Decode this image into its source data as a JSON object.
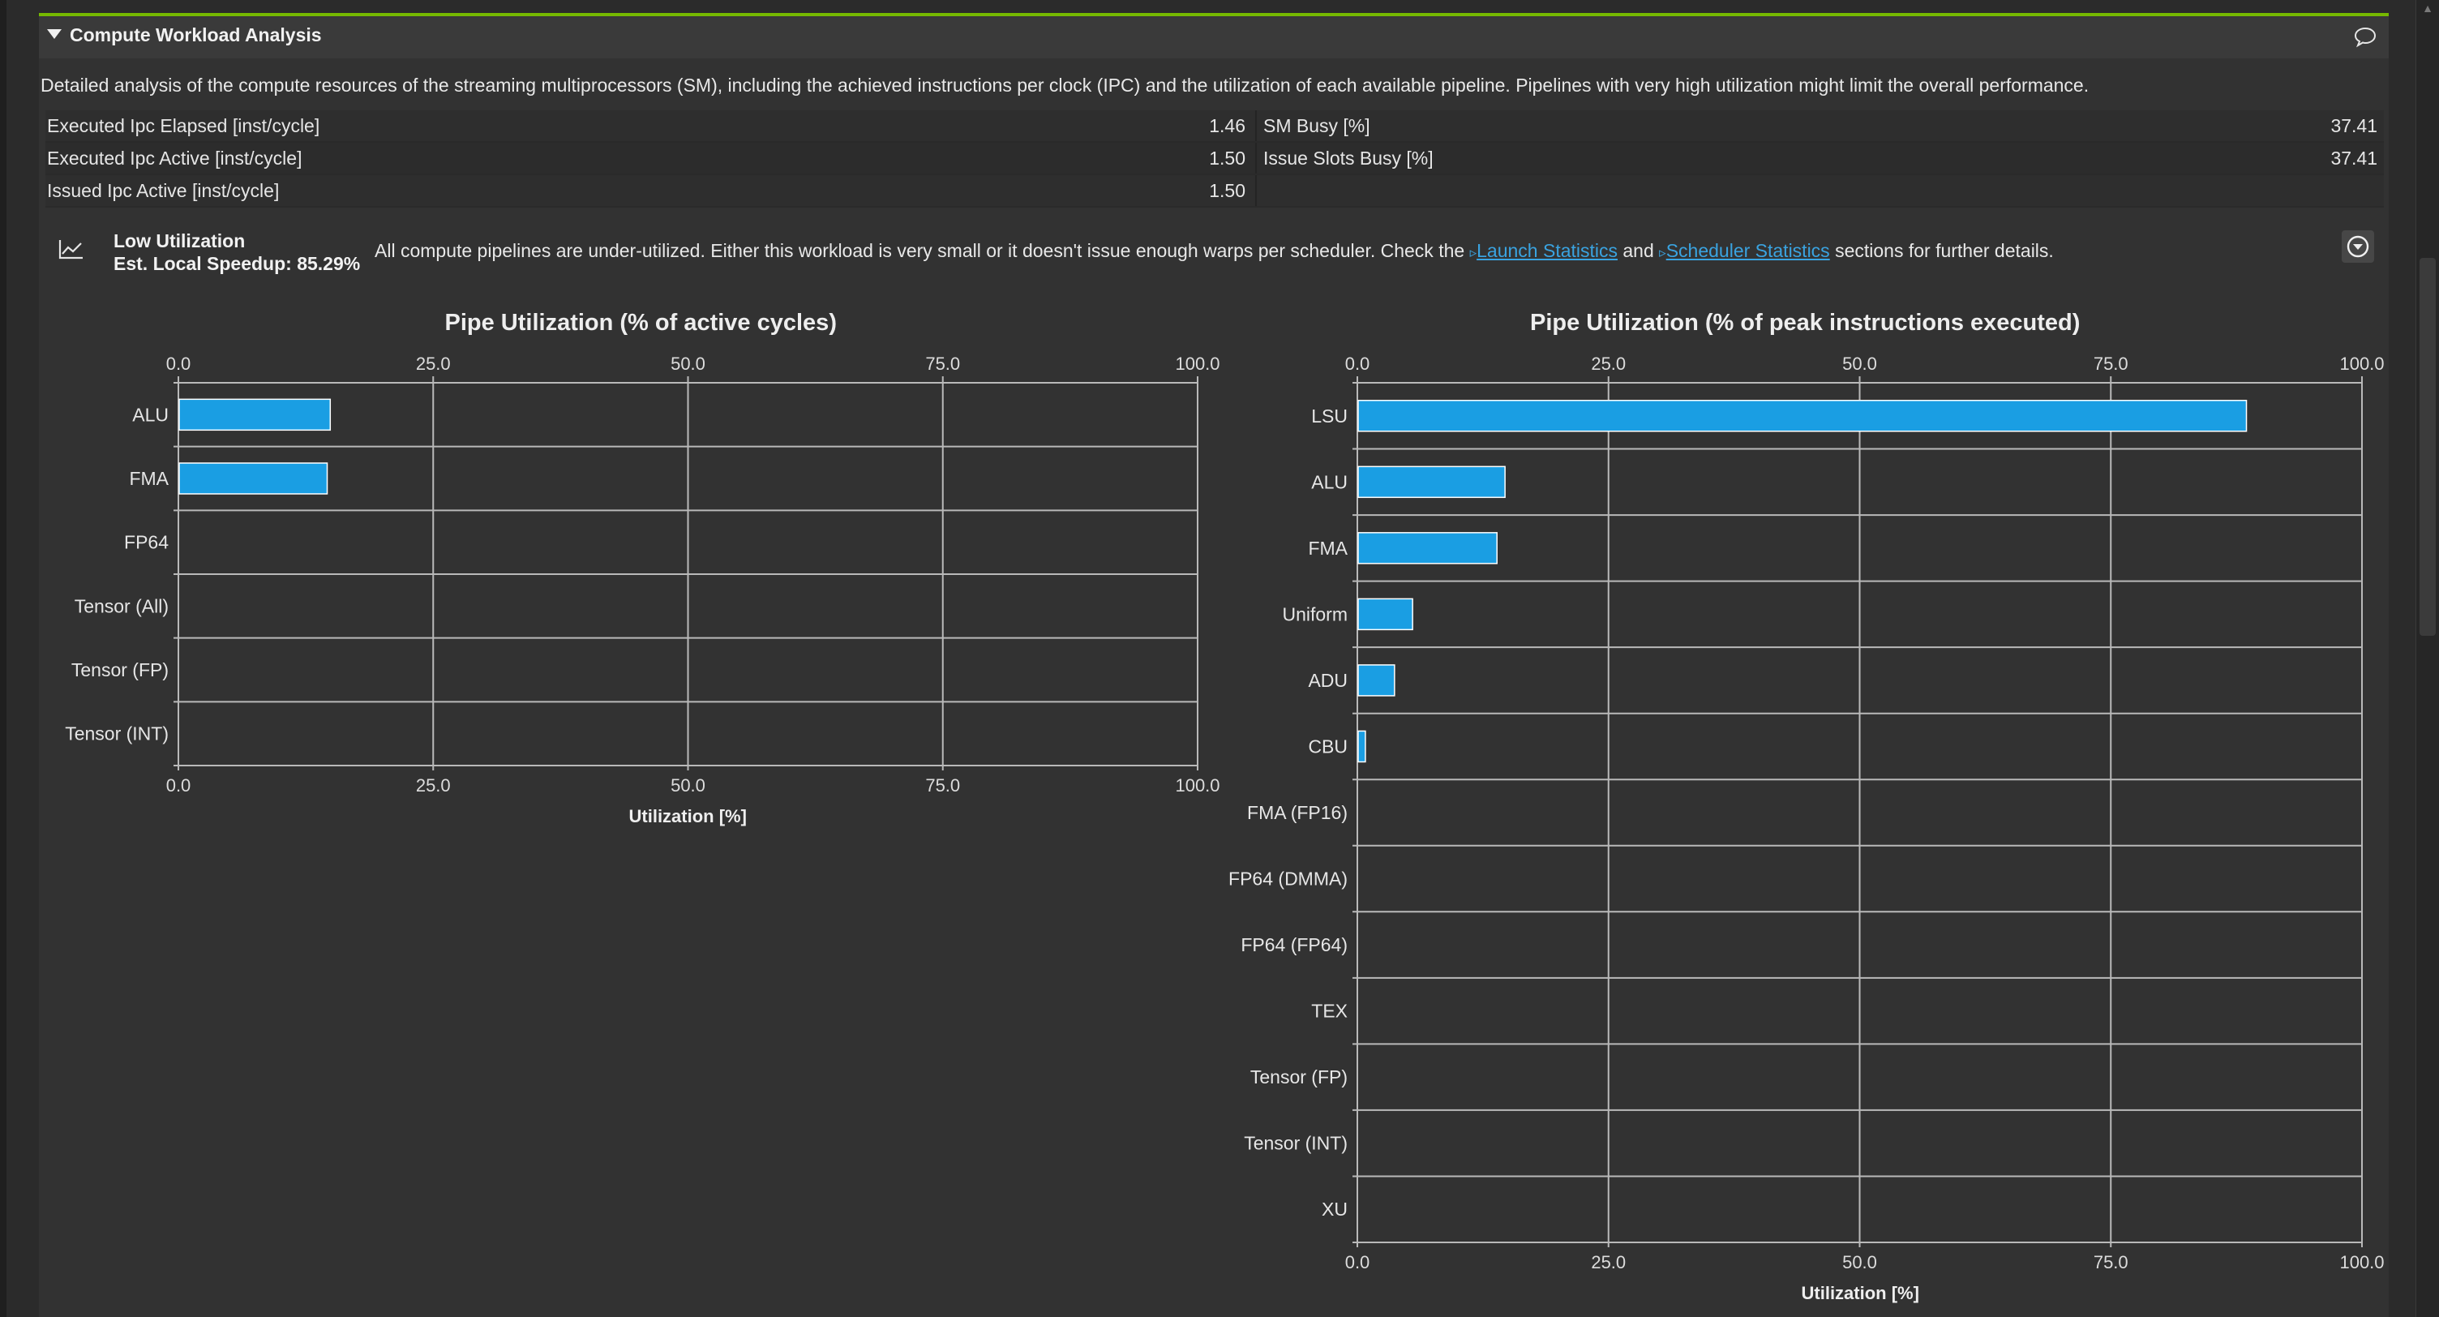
{
  "section": {
    "title": "Compute Workload Analysis",
    "description": "Detailed analysis of the compute resources of the streaming multiprocessors (SM), including the achieved instructions per clock (IPC) and the utilization of each available pipeline. Pipelines with very high utilization might limit the overall performance."
  },
  "metrics": [
    {
      "label": "Executed Ipc Elapsed [inst/cycle]",
      "value": "1.46",
      "label2": "SM Busy [%]",
      "value2": "37.41"
    },
    {
      "label": "Executed Ipc Active [inst/cycle]",
      "value": "1.50",
      "label2": "Issue Slots Busy [%]",
      "value2": "37.41"
    },
    {
      "label": "Issued Ipc Active [inst/cycle]",
      "value": "1.50",
      "label2": "",
      "value2": ""
    }
  ],
  "rule": {
    "name": "Low Utilization",
    "speedup": "Est. Local Speedup: 85.29%",
    "message_pre": "All compute pipelines are under-utilized. Either this workload is very small or it doesn't issue enough warps per scheduler. Check the ",
    "link1": "Launch Statistics",
    "message_mid": " and ",
    "link2": "Scheduler Statistics",
    "message_post": " sections for further details."
  },
  "colors": {
    "bar": "#1a9ee3",
    "bar_border": "#ffffff",
    "grid": "#b9b9b9",
    "accent": "#76b900"
  },
  "chart_data": [
    {
      "type": "bar",
      "orientation": "horizontal",
      "title": "Pipe Utilization (% of active cycles)",
      "xlabel": "Utilization [%]",
      "xlim": [
        0,
        100
      ],
      "ticks": [
        "0.0",
        "25.0",
        "50.0",
        "75.0",
        "100.0"
      ],
      "categories": [
        "ALU",
        "FMA",
        "FP64",
        "Tensor (All)",
        "Tensor (FP)",
        "Tensor (INT)"
      ],
      "values": [
        14.9,
        14.6,
        0,
        0,
        0,
        0
      ]
    },
    {
      "type": "bar",
      "orientation": "horizontal",
      "title": "Pipe Utilization (% of peak instructions executed)",
      "xlabel": "Utilization [%]",
      "xlim": [
        0,
        100
      ],
      "ticks": [
        "0.0",
        "25.0",
        "50.0",
        "75.0",
        "100.0"
      ],
      "categories": [
        "LSU",
        "ALU",
        "FMA",
        "Uniform",
        "ADU",
        "CBU",
        "FMA (FP16)",
        "FP64 (DMMA)",
        "FP64 (FP64)",
        "TEX",
        "Tensor (FP)",
        "Tensor (INT)",
        "XU"
      ],
      "values": [
        88.5,
        14.7,
        13.9,
        5.5,
        3.7,
        0.8,
        0,
        0,
        0,
        0,
        0,
        0,
        0
      ]
    }
  ]
}
